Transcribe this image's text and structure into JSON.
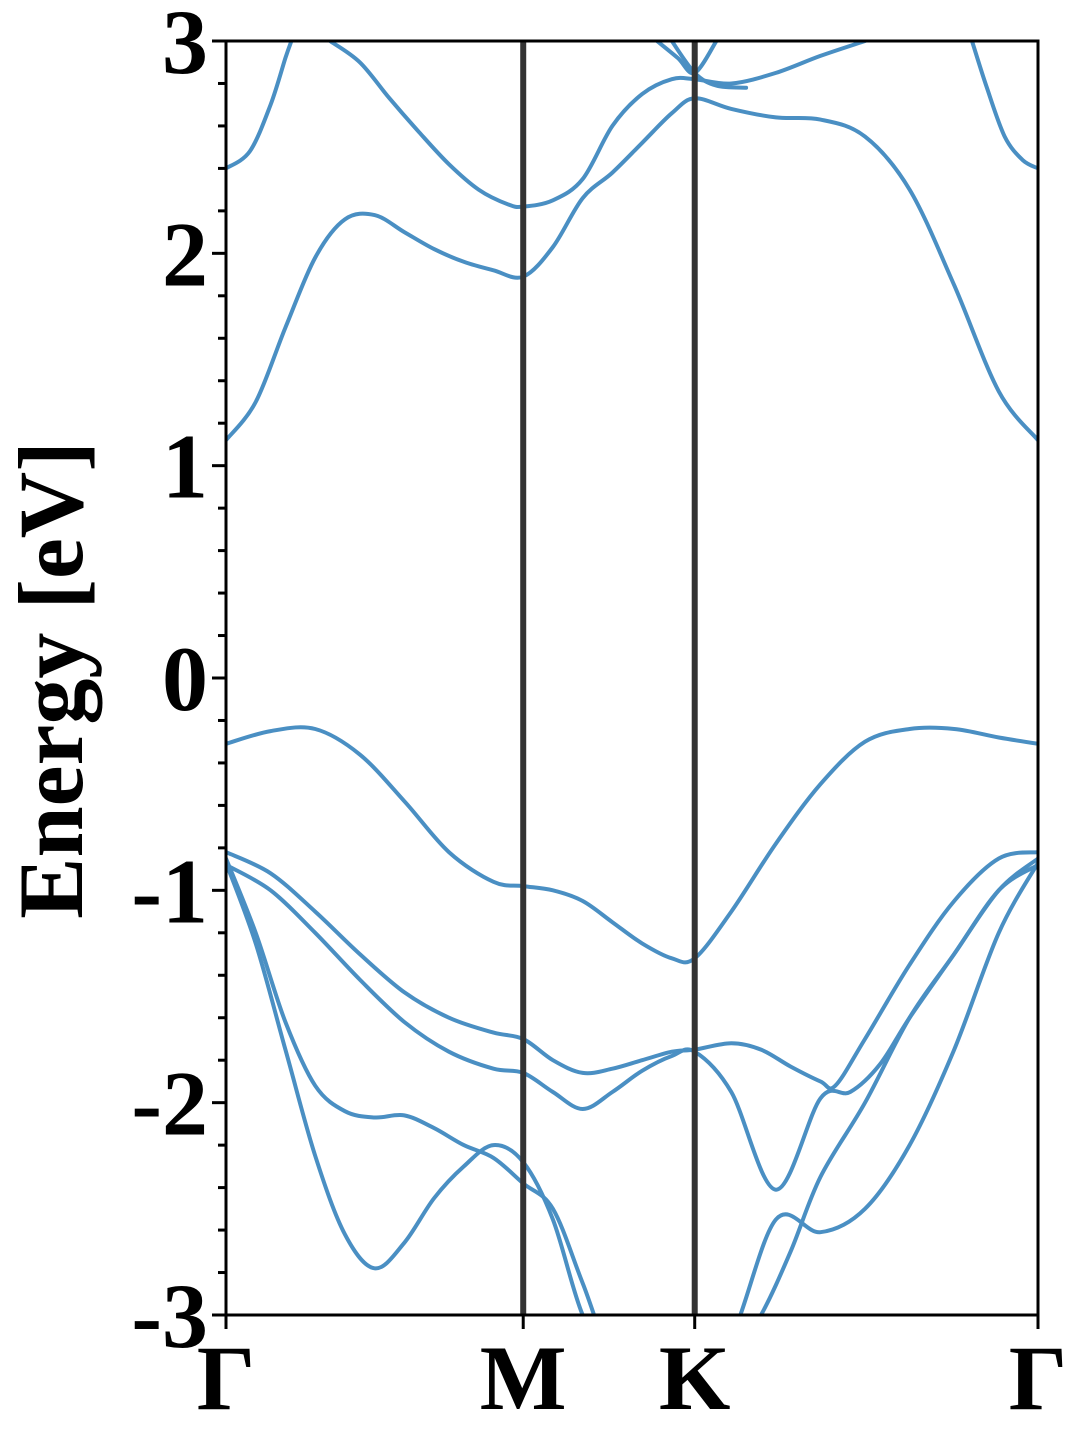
{
  "chart_data": {
    "type": "line",
    "title": "",
    "xlabel": "",
    "ylabel": "Energy [eV]",
    "ylim": [
      -3,
      3
    ],
    "xlim": [
      0,
      2.732
    ],
    "xticks": [
      {
        "label": "Γ",
        "x": 0
      },
      {
        "label": "M",
        "x": 1.0
      },
      {
        "label": "K",
        "x": 1.577
      },
      {
        "label": "Γ",
        "x": 2.732
      }
    ],
    "yticks": [
      {
        "label": "3",
        "value": 3
      },
      {
        "label": "2",
        "value": 2
      },
      {
        "label": "1",
        "value": 1
      },
      {
        "label": "0",
        "value": 0
      },
      {
        "label": "-1",
        "value": -1
      },
      {
        "label": "-2",
        "value": -2
      },
      {
        "label": "-3",
        "value": -3
      }
    ],
    "minor_ytick_step": 0.2,
    "vlines_x": [
      1.0,
      1.577
    ],
    "grid": false,
    "legend": "none",
    "line_color": "#4a8fc3",
    "vline_color": "#333333",
    "series": [
      {
        "x": [
          0,
          0.1,
          0.2,
          0.3,
          0.4,
          0.5,
          0.6,
          0.7,
          0.8,
          0.9,
          1.0,
          1.1,
          1.2,
          1.3,
          1.4,
          1.5,
          1.577,
          1.7,
          1.85,
          2.0,
          2.15,
          2.3,
          2.45,
          2.6,
          2.732
        ],
        "y": [
          -0.87,
          -1.25,
          -1.75,
          -2.25,
          -2.62,
          -2.78,
          -2.66,
          -2.45,
          -2.3,
          -2.2,
          -2.28,
          -2.55,
          -3.0,
          -3.2,
          -3.2,
          -3.2,
          -3.2,
          -3.1,
          -2.55,
          -2.61,
          -2.5,
          -2.2,
          -1.75,
          -1.2,
          -0.87
        ]
      },
      {
        "x": [
          0,
          0.1,
          0.2,
          0.3,
          0.4,
          0.5,
          0.6,
          0.7,
          0.8,
          0.9,
          1.0,
          1.1,
          1.2,
          1.3,
          1.4,
          1.5,
          1.577,
          1.7,
          1.8,
          1.9,
          2.0,
          2.15,
          2.3,
          2.45,
          2.6,
          2.732
        ],
        "y": [
          -0.85,
          -1.2,
          -1.62,
          -1.92,
          -2.04,
          -2.07,
          -2.06,
          -2.12,
          -2.2,
          -2.26,
          -2.38,
          -2.5,
          -2.85,
          -3.2,
          -3.2,
          -3.2,
          -3.2,
          -3.2,
          -3.0,
          -2.7,
          -2.35,
          -2.0,
          -1.6,
          -1.3,
          -1.0,
          -0.85
        ]
      },
      {
        "x": [
          0,
          0.15,
          0.3,
          0.45,
          0.6,
          0.75,
          0.9,
          1.0,
          1.1,
          1.2,
          1.3,
          1.4,
          1.5,
          1.577,
          1.7,
          1.85,
          2.0,
          2.1,
          2.2,
          2.3,
          2.45,
          2.6,
          2.732
        ],
        "y": [
          -0.88,
          -1.0,
          -1.2,
          -1.42,
          -1.62,
          -1.76,
          -1.84,
          -1.86,
          -1.95,
          -2.03,
          -1.95,
          -1.85,
          -1.78,
          -1.76,
          -1.95,
          -2.41,
          -1.98,
          -1.95,
          -1.82,
          -1.6,
          -1.3,
          -1.0,
          -0.88
        ]
      },
      {
        "x": [
          0,
          0.15,
          0.3,
          0.45,
          0.6,
          0.75,
          0.9,
          1.0,
          1.1,
          1.2,
          1.3,
          1.4,
          1.5,
          1.577,
          1.7,
          1.8,
          1.9,
          2.0,
          2.05,
          2.15,
          2.3,
          2.45,
          2.6,
          2.732
        ],
        "y": [
          -0.82,
          -0.92,
          -1.1,
          -1.3,
          -1.48,
          -1.6,
          -1.67,
          -1.7,
          -1.8,
          -1.86,
          -1.84,
          -1.8,
          -1.76,
          -1.75,
          -1.72,
          -1.75,
          -1.83,
          -1.9,
          -1.92,
          -1.7,
          -1.35,
          -1.05,
          -0.85,
          -0.82
        ]
      },
      {
        "x": [
          0,
          0.15,
          0.3,
          0.45,
          0.6,
          0.75,
          0.9,
          1.0,
          1.1,
          1.2,
          1.3,
          1.4,
          1.5,
          1.577,
          1.7,
          1.85,
          2.0,
          2.15,
          2.3,
          2.45,
          2.6,
          2.732
        ],
        "y": [
          -0.31,
          -0.25,
          -0.24,
          -0.36,
          -0.58,
          -0.82,
          -0.96,
          -0.98,
          -1.0,
          -1.05,
          -1.15,
          -1.25,
          -1.32,
          -1.32,
          -1.1,
          -0.78,
          -0.5,
          -0.3,
          -0.24,
          -0.24,
          -0.28,
          -0.31
        ]
      },
      {
        "x": [
          0,
          0.1,
          0.2,
          0.3,
          0.4,
          0.5,
          0.6,
          0.7,
          0.8,
          0.9,
          1.0,
          1.1,
          1.2,
          1.3,
          1.4,
          1.5,
          1.577,
          1.7,
          1.85,
          2.0,
          2.15,
          2.3,
          2.45,
          2.6,
          2.732
        ],
        "y": [
          1.12,
          1.3,
          1.65,
          1.98,
          2.16,
          2.18,
          2.1,
          2.02,
          1.96,
          1.92,
          1.89,
          2.03,
          2.26,
          2.38,
          2.52,
          2.66,
          2.73,
          2.68,
          2.64,
          2.63,
          2.55,
          2.3,
          1.85,
          1.35,
          1.12
        ]
      },
      {
        "x": [
          0.35,
          0.45,
          0.55,
          0.65,
          0.75,
          0.85,
          0.95,
          1.0,
          1.1,
          1.2,
          1.3,
          1.4,
          1.5,
          1.577,
          1.7,
          1.85,
          2.0,
          2.15
        ],
        "y": [
          3.0,
          2.9,
          2.73,
          2.57,
          2.42,
          2.3,
          2.23,
          2.22,
          2.25,
          2.35,
          2.6,
          2.75,
          2.82,
          2.82,
          2.8,
          2.85,
          2.93,
          3.0
        ]
      },
      {
        "x": [
          0,
          0.08,
          0.15,
          0.2,
          0.22
        ],
        "y": [
          2.4,
          2.48,
          2.7,
          2.92,
          3.0
        ]
      },
      {
        "x": [
          1.5,
          1.577,
          1.65,
          1.75
        ],
        "y": [
          3.0,
          2.85,
          2.79,
          2.78
        ]
      },
      {
        "x": [
          1.45,
          1.52,
          1.577,
          1.65
        ],
        "y": [
          3.0,
          2.92,
          2.85,
          3.0
        ]
      },
      {
        "x": [
          2.51,
          2.56,
          2.62,
          2.68,
          2.732
        ],
        "y": [
          3.0,
          2.78,
          2.55,
          2.44,
          2.4
        ]
      }
    ]
  }
}
